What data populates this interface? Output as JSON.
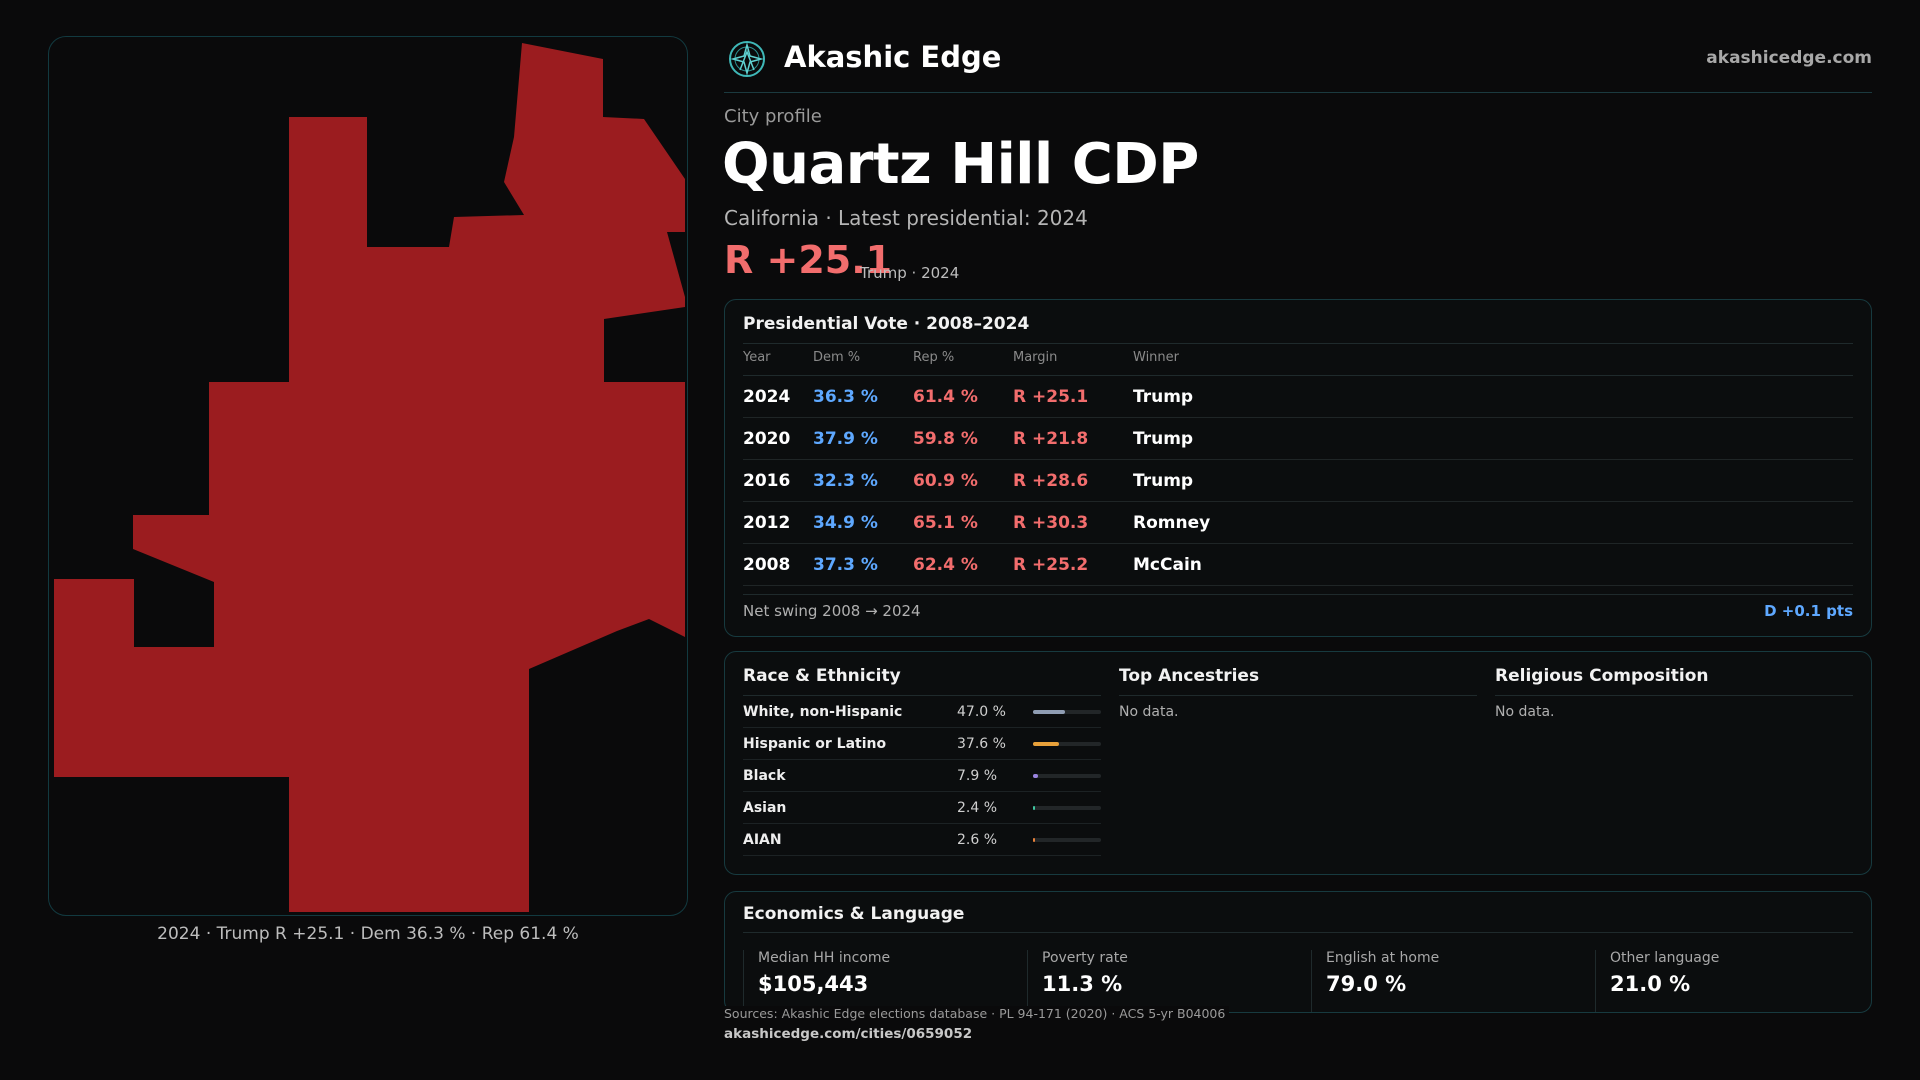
{
  "map": {
    "caption": "2024 · Trump R +25.1 · Dem 36.3 % · Rep 61.4 %",
    "fill_color": "#9b1c1f"
  },
  "header": {
    "brand": "Akashic Edge",
    "site": "akashicedge.com",
    "logo_icon": "compass-star-icon"
  },
  "profile": {
    "kicker": "City profile",
    "city": "Quartz Hill CDP",
    "subtitle": "California · Latest presidential: 2024",
    "margin": "R +25.1",
    "margin_note": "Trump · 2024"
  },
  "vote": {
    "title": "Presidential Vote · 2008–2024",
    "columns": [
      "Year",
      "Dem %",
      "Rep %",
      "Margin",
      "Winner"
    ],
    "rows": [
      {
        "year": "2024",
        "dem": "36.3 %",
        "rep": "61.4 %",
        "margin": "R +25.1",
        "winner": "Trump"
      },
      {
        "year": "2020",
        "dem": "37.9 %",
        "rep": "59.8 %",
        "margin": "R +21.8",
        "winner": "Trump"
      },
      {
        "year": "2016",
        "dem": "32.3 %",
        "rep": "60.9 %",
        "margin": "R +28.6",
        "winner": "Trump"
      },
      {
        "year": "2012",
        "dem": "34.9 %",
        "rep": "65.1 %",
        "margin": "R +30.3",
        "winner": "Romney"
      },
      {
        "year": "2008",
        "dem": "37.3 %",
        "rep": "62.4 %",
        "margin": "R +25.2",
        "winner": "McCain"
      }
    ],
    "swing_label": "Net swing 2008 → 2024",
    "swing_value": "D +0.1 pts"
  },
  "race": {
    "title": "Race & Ethnicity",
    "rows": [
      {
        "label": "White, non-Hispanic",
        "value": "47.0 %",
        "pct": 47.0,
        "color": "#8f9db3"
      },
      {
        "label": "Hispanic or Latino",
        "value": "37.6 %",
        "pct": 37.6,
        "color": "#e8a13a"
      },
      {
        "label": "Black",
        "value": "7.9 %",
        "pct": 7.9,
        "color": "#9a84e0"
      },
      {
        "label": "Asian",
        "value": "2.4 %",
        "pct": 2.4,
        "color": "#3fc6a0"
      },
      {
        "label": "AIAN",
        "value": "2.6 %",
        "pct": 2.6,
        "color": "#e8813a"
      }
    ]
  },
  "ancestries": {
    "title": "Top Ancestries",
    "empty": "No data."
  },
  "religion": {
    "title": "Religious Composition",
    "empty": "No data."
  },
  "econ": {
    "title": "Economics & Language",
    "stats": [
      {
        "label": "Median HH income",
        "value": "$105,443"
      },
      {
        "label": "Poverty rate",
        "value": "11.3 %"
      },
      {
        "label": "English at home",
        "value": "79.0 %"
      },
      {
        "label": "Other language",
        "value": "21.0 %"
      }
    ]
  },
  "footer": {
    "sources": "Sources: Akashic Edge elections database · PL 94-171 (2020) · ACS 5-yr B04006",
    "url": "akashicedge.com/cities/0659052"
  }
}
